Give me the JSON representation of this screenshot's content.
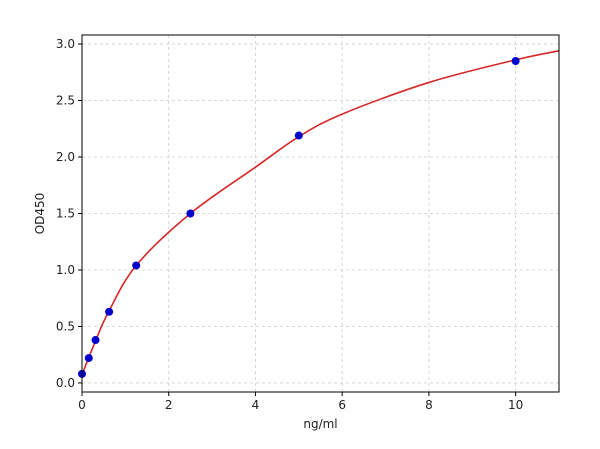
{
  "chart_data": {
    "type": "scatter",
    "xlabel": "ng/ml",
    "ylabel": "OD450",
    "xlim": [
      0,
      11
    ],
    "ylim": [
      -0.08,
      3.08
    ],
    "x_ticks": [
      0,
      2,
      4,
      6,
      8,
      10
    ],
    "y_ticks": [
      0.0,
      0.5,
      1.0,
      1.5,
      2.0,
      2.5,
      3.0
    ],
    "x_tick_labels": [
      "0",
      "2",
      "4",
      "6",
      "8",
      "10"
    ],
    "y_tick_labels": [
      "0.0",
      "0.5",
      "1.0",
      "1.5",
      "2.0",
      "2.5",
      "3.0"
    ],
    "grid": true,
    "series": [
      {
        "kind": "points",
        "color": "#0000cc",
        "x": [
          0,
          0.156,
          0.3125,
          0.625,
          1.25,
          2.5,
          5,
          10
        ],
        "y": [
          0.08,
          0.22,
          0.38,
          0.63,
          1.04,
          1.5,
          2.19,
          2.85
        ]
      },
      {
        "kind": "fit-curve",
        "color": "#d62728",
        "x": [
          0,
          0.15,
          0.3,
          0.6,
          1.25,
          2.5,
          4,
          5,
          6,
          8,
          10,
          11
        ],
        "y": [
          0.07,
          0.22,
          0.36,
          0.62,
          1.04,
          1.5,
          1.91,
          2.18,
          2.38,
          2.66,
          2.86,
          2.94
        ]
      }
    ]
  }
}
